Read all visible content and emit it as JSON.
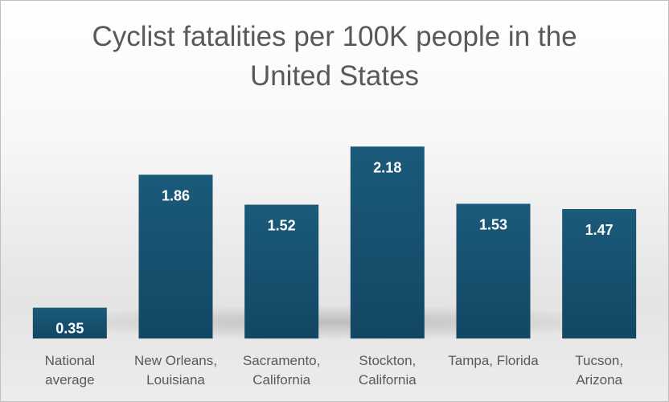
{
  "chart_data": {
    "type": "bar",
    "title": "Cyclist fatalities per 100K people in the\nUnited States",
    "xlabel": "",
    "ylabel": "",
    "categories": [
      [
        "National",
        "average"
      ],
      [
        "New Orleans,",
        "Louisiana"
      ],
      [
        "Sacramento,",
        "California"
      ],
      [
        "Stockton,",
        "California"
      ],
      [
        "Tampa, Florida"
      ],
      [
        "Tucson,",
        "Arizona"
      ]
    ],
    "values": [
      0.35,
      1.86,
      1.52,
      2.18,
      1.53,
      1.47
    ],
    "data_labels": [
      "0.35",
      "1.86",
      "1.52",
      "2.18",
      "1.53",
      "1.47"
    ],
    "ylim": [
      0,
      2.5
    ],
    "grid": false,
    "legend": "none",
    "bar_color": "#1b5a7a",
    "bar_color_bottom": "#124763",
    "label_color": "#ffffff",
    "tick_label_color": "#595959"
  }
}
